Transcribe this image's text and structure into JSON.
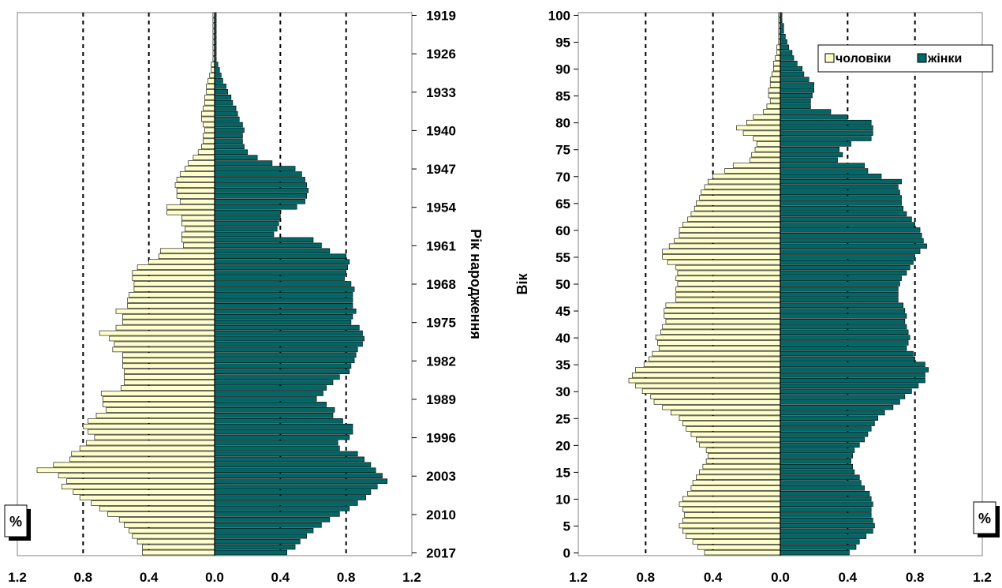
{
  "chart_data": [
    {
      "type": "bar",
      "orientation": "horizontal",
      "kind": "population-pyramid",
      "title": "",
      "ylabel": "Рік народження",
      "xlabel": "%",
      "y_range": [
        1919,
        2017
      ],
      "y_tick_labels": [
        "1919",
        "1926",
        "1933",
        "1940",
        "1947",
        "1954",
        "1961",
        "1968",
        "1975",
        "1982",
        "1989",
        "1996",
        "2003",
        "2010",
        "2017"
      ],
      "x_tick_labels": [
        "1.2",
        "0.8",
        "0.4",
        "0.0",
        "0.4",
        "0.8",
        "1.2"
      ],
      "xlim_abs": [
        0,
        1.2
      ],
      "gridlines": [
        -0.8,
        -0.4,
        0.4,
        0.8
      ],
      "series": [
        {
          "name": "чоловіки",
          "color": "#FFFFCC",
          "by_birth_year_1919_to_2017": [
            0.01,
            0.01,
            0.01,
            0.01,
            0.01,
            0.01,
            0.01,
            0.01,
            0.01,
            0.02,
            0.02,
            0.03,
            0.04,
            0.05,
            0.05,
            0.06,
            0.06,
            0.07,
            0.08,
            0.08,
            0.07,
            0.06,
            0.07,
            0.07,
            0.08,
            0.1,
            0.13,
            0.16,
            0.18,
            0.21,
            0.23,
            0.24,
            0.23,
            0.23,
            0.21,
            0.29,
            0.29,
            0.2,
            0.2,
            0.18,
            0.2,
            0.2,
            0.19,
            0.33,
            0.34,
            0.4,
            0.47,
            0.5,
            0.5,
            0.49,
            0.49,
            0.52,
            0.53,
            0.53,
            0.6,
            0.56,
            0.56,
            0.6,
            0.7,
            0.64,
            0.61,
            0.62,
            0.56,
            0.56,
            0.56,
            0.55,
            0.55,
            0.55,
            0.57,
            0.69,
            0.68,
            0.68,
            0.66,
            0.72,
            0.77,
            0.8,
            0.77,
            0.73,
            0.78,
            0.82,
            0.87,
            0.88,
            0.98,
            1.08,
            0.95,
            0.9,
            0.93,
            0.86,
            0.82,
            0.75,
            0.7,
            0.65,
            0.58,
            0.55,
            0.52,
            0.5,
            0.47,
            0.44,
            0.44
          ]
        },
        {
          "name": "жінки",
          "color": "#006666",
          "by_birth_year_1919_to_2017": [
            0.01,
            0.01,
            0.01,
            0.01,
            0.01,
            0.01,
            0.01,
            0.01,
            0.01,
            0.02,
            0.03,
            0.04,
            0.05,
            0.07,
            0.08,
            0.1,
            0.11,
            0.13,
            0.14,
            0.15,
            0.17,
            0.18,
            0.17,
            0.17,
            0.18,
            0.2,
            0.26,
            0.35,
            0.49,
            0.53,
            0.55,
            0.56,
            0.57,
            0.56,
            0.55,
            0.5,
            0.4,
            0.4,
            0.39,
            0.38,
            0.36,
            0.6,
            0.65,
            0.7,
            0.8,
            0.82,
            0.81,
            0.8,
            0.79,
            0.83,
            0.85,
            0.84,
            0.84,
            0.84,
            0.86,
            0.84,
            0.83,
            0.88,
            0.9,
            0.91,
            0.9,
            0.87,
            0.86,
            0.85,
            0.83,
            0.82,
            0.76,
            0.72,
            0.68,
            0.66,
            0.62,
            0.68,
            0.73,
            0.72,
            0.78,
            0.84,
            0.84,
            0.82,
            0.75,
            0.76,
            0.87,
            0.91,
            0.95,
            0.98,
            1.02,
            1.05,
            0.99,
            0.95,
            0.92,
            0.87,
            0.82,
            0.76,
            0.7,
            0.65,
            0.6,
            0.56,
            0.52,
            0.49,
            0.44
          ]
        }
      ]
    },
    {
      "type": "bar",
      "orientation": "horizontal",
      "kind": "population-pyramid",
      "title": "",
      "ylabel": "Вік",
      "xlabel": "%",
      "y_range": [
        0,
        100
      ],
      "y_tick_labels": [
        "0",
        "5",
        "10",
        "15",
        "20",
        "25",
        "30",
        "35",
        "40",
        "45",
        "50",
        "55",
        "60",
        "65",
        "70",
        "75",
        "80",
        "85",
        "90",
        "95",
        "100"
      ],
      "x_tick_labels": [
        "1.2",
        "0.8",
        "0.4",
        "0.0",
        "0.4",
        "0.8",
        "1.2"
      ],
      "xlim_abs": [
        0,
        1.2
      ],
      "gridlines": [
        -0.8,
        -0.4,
        0.4,
        0.8
      ],
      "legend": {
        "position": "top-right",
        "items": [
          "чоловіки",
          "жінки"
        ]
      },
      "series": [
        {
          "name": "чоловіки",
          "color": "#FFFFCC",
          "by_age_0_to_100": [
            0.45,
            0.49,
            0.52,
            0.56,
            0.58,
            0.6,
            0.58,
            0.57,
            0.58,
            0.6,
            0.58,
            0.55,
            0.53,
            0.52,
            0.5,
            0.48,
            0.46,
            0.44,
            0.43,
            0.44,
            0.48,
            0.5,
            0.53,
            0.56,
            0.58,
            0.6,
            0.65,
            0.7,
            0.75,
            0.77,
            0.82,
            0.86,
            0.9,
            0.88,
            0.86,
            0.81,
            0.78,
            0.76,
            0.72,
            0.73,
            0.74,
            0.71,
            0.7,
            0.68,
            0.69,
            0.69,
            0.68,
            0.62,
            0.62,
            0.62,
            0.61,
            0.62,
            0.61,
            0.62,
            0.67,
            0.7,
            0.7,
            0.66,
            0.63,
            0.6,
            0.6,
            0.58,
            0.55,
            0.53,
            0.51,
            0.5,
            0.48,
            0.47,
            0.45,
            0.43,
            0.4,
            0.33,
            0.28,
            0.18,
            0.17,
            0.15,
            0.14,
            0.16,
            0.22,
            0.26,
            0.2,
            0.16,
            0.1,
            0.08,
            0.06,
            0.07,
            0.07,
            0.06,
            0.06,
            0.05,
            0.04,
            0.04,
            0.03,
            0.02,
            0.02,
            0.01,
            0.01,
            0.01,
            0.01,
            0.01,
            0.01
          ]
        },
        {
          "name": "жінки",
          "color": "#006666",
          "by_age_0_to_100": [
            0.41,
            0.45,
            0.47,
            0.51,
            0.55,
            0.56,
            0.55,
            0.54,
            0.54,
            0.55,
            0.54,
            0.53,
            0.5,
            0.48,
            0.47,
            0.44,
            0.43,
            0.42,
            0.43,
            0.44,
            0.47,
            0.5,
            0.52,
            0.54,
            0.56,
            0.58,
            0.62,
            0.67,
            0.71,
            0.74,
            0.78,
            0.82,
            0.86,
            0.86,
            0.88,
            0.86,
            0.8,
            0.79,
            0.75,
            0.76,
            0.77,
            0.76,
            0.75,
            0.74,
            0.75,
            0.74,
            0.73,
            0.7,
            0.7,
            0.7,
            0.71,
            0.72,
            0.75,
            0.77,
            0.79,
            0.8,
            0.83,
            0.87,
            0.85,
            0.84,
            0.83,
            0.8,
            0.78,
            0.75,
            0.73,
            0.72,
            0.72,
            0.71,
            0.7,
            0.72,
            0.6,
            0.52,
            0.5,
            0.34,
            0.37,
            0.35,
            0.42,
            0.54,
            0.55,
            0.55,
            0.54,
            0.4,
            0.3,
            0.18,
            0.18,
            0.19,
            0.2,
            0.2,
            0.17,
            0.14,
            0.13,
            0.1,
            0.08,
            0.07,
            0.05,
            0.04,
            0.03,
            0.02,
            0.02,
            0.01,
            0.01
          ]
        }
      ]
    }
  ]
}
